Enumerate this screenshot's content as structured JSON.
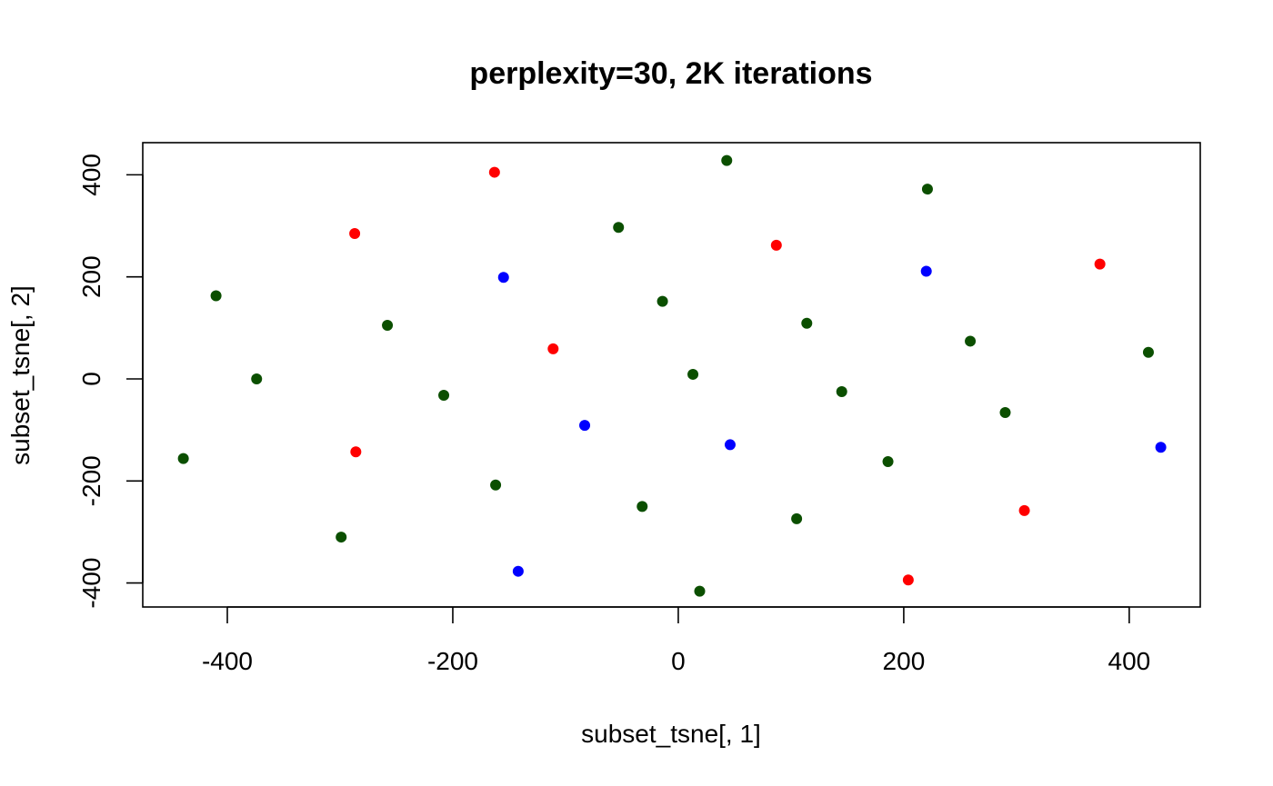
{
  "chart_data": {
    "type": "scatter",
    "title": "perplexity=30, 2K iterations",
    "xlabel": "subset_tsne[, 1]",
    "ylabel": "subset_tsne[, 2]",
    "xlim": [
      -475,
      463
    ],
    "ylim": [
      -447,
      463
    ],
    "x_ticks": [
      -400,
      -200,
      0,
      200,
      400
    ],
    "x_tick_labels": [
      "-400",
      "-200",
      "0",
      "200",
      "400"
    ],
    "y_ticks": [
      -400,
      -200,
      0,
      200,
      400
    ],
    "y_tick_labels": [
      "-400",
      "-200",
      "0",
      "200",
      "400"
    ],
    "grid": false,
    "colors": {
      "green": "#0b4f00",
      "red": "#ff0000",
      "blue": "#0000ff"
    },
    "points": [
      {
        "x": 43,
        "y": 428,
        "color": "green"
      },
      {
        "x": -163,
        "y": 405,
        "color": "red"
      },
      {
        "x": 221,
        "y": 372,
        "color": "green"
      },
      {
        "x": -53,
        "y": 297,
        "color": "green"
      },
      {
        "x": -287,
        "y": 285,
        "color": "red"
      },
      {
        "x": 87,
        "y": 262,
        "color": "red"
      },
      {
        "x": 374,
        "y": 225,
        "color": "red"
      },
      {
        "x": 220,
        "y": 211,
        "color": "blue"
      },
      {
        "x": -155,
        "y": 199,
        "color": "blue"
      },
      {
        "x": -410,
        "y": 163,
        "color": "green"
      },
      {
        "x": -14,
        "y": 152,
        "color": "green"
      },
      {
        "x": 114,
        "y": 109,
        "color": "green"
      },
      {
        "x": -258,
        "y": 105,
        "color": "green"
      },
      {
        "x": 259,
        "y": 74,
        "color": "green"
      },
      {
        "x": -111,
        "y": 59,
        "color": "red"
      },
      {
        "x": 417,
        "y": 52,
        "color": "green"
      },
      {
        "x": 13,
        "y": 9,
        "color": "green"
      },
      {
        "x": -374,
        "y": 0,
        "color": "green"
      },
      {
        "x": 145,
        "y": -25,
        "color": "green"
      },
      {
        "x": -208,
        "y": -32,
        "color": "green"
      },
      {
        "x": 290,
        "y": -66,
        "color": "green"
      },
      {
        "x": -83,
        "y": -91,
        "color": "blue"
      },
      {
        "x": 46,
        "y": -129,
        "color": "blue"
      },
      {
        "x": 428,
        "y": -134,
        "color": "blue"
      },
      {
        "x": -286,
        "y": -143,
        "color": "red"
      },
      {
        "x": -439,
        "y": -156,
        "color": "green"
      },
      {
        "x": 186,
        "y": -162,
        "color": "green"
      },
      {
        "x": -162,
        "y": -208,
        "color": "green"
      },
      {
        "x": -32,
        "y": -250,
        "color": "green"
      },
      {
        "x": 307,
        "y": -258,
        "color": "red"
      },
      {
        "x": 105,
        "y": -274,
        "color": "green"
      },
      {
        "x": -299,
        "y": -310,
        "color": "green"
      },
      {
        "x": -142,
        "y": -377,
        "color": "blue"
      },
      {
        "x": 204,
        "y": -394,
        "color": "red"
      },
      {
        "x": 19,
        "y": -416,
        "color": "green"
      }
    ]
  }
}
